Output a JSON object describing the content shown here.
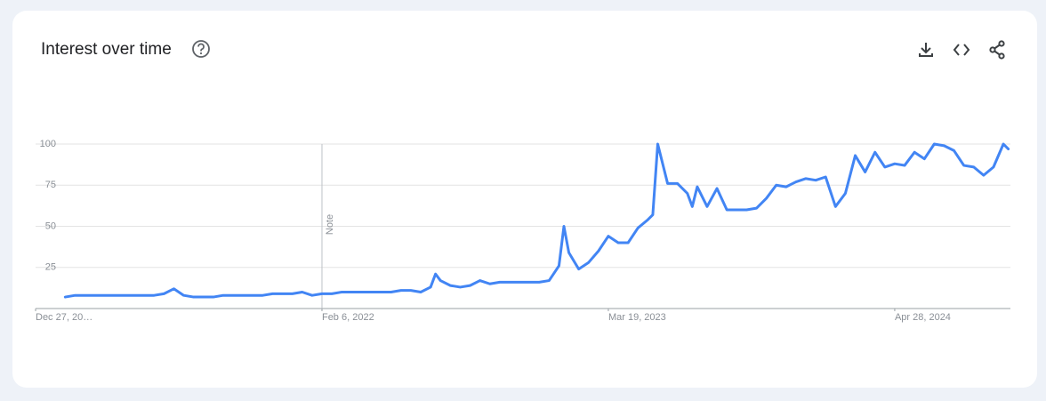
{
  "chart_data": {
    "type": "line",
    "title": "Interest over time",
    "x": [
      "2021-02-07",
      "2021-02-21",
      "2021-03-07",
      "2021-03-21",
      "2021-04-04",
      "2021-04-18",
      "2021-05-02",
      "2021-05-16",
      "2021-05-30",
      "2021-06-13",
      "2021-06-27",
      "2021-07-11",
      "2021-07-25",
      "2021-08-08",
      "2021-08-22",
      "2021-09-05",
      "2021-09-19",
      "2021-10-03",
      "2021-10-17",
      "2021-10-31",
      "2021-11-14",
      "2021-11-28",
      "2021-12-12",
      "2021-12-26",
      "2022-01-09",
      "2022-01-23",
      "2022-02-06",
      "2022-02-20",
      "2022-03-06",
      "2022-03-20",
      "2022-04-03",
      "2022-04-17",
      "2022-05-01",
      "2022-05-15",
      "2022-05-29",
      "2022-06-12",
      "2022-06-26",
      "2022-07-10",
      "2022-07-17",
      "2022-07-24",
      "2022-08-07",
      "2022-08-21",
      "2022-09-04",
      "2022-09-18",
      "2022-10-02",
      "2022-10-16",
      "2022-10-30",
      "2022-11-13",
      "2022-11-27",
      "2022-12-11",
      "2022-12-25",
      "2023-01-08",
      "2023-01-15",
      "2023-01-22",
      "2023-02-05",
      "2023-02-19",
      "2023-03-05",
      "2023-03-19",
      "2023-04-02",
      "2023-04-16",
      "2023-04-30",
      "2023-05-14",
      "2023-05-21",
      "2023-05-28",
      "2023-06-11",
      "2023-06-25",
      "2023-07-09",
      "2023-07-16",
      "2023-07-23",
      "2023-08-06",
      "2023-08-20",
      "2023-09-03",
      "2023-09-17",
      "2023-10-01",
      "2023-10-15",
      "2023-10-29",
      "2023-11-12",
      "2023-11-26",
      "2023-12-10",
      "2023-12-24",
      "2024-01-07",
      "2024-01-21",
      "2024-02-04",
      "2024-02-18",
      "2024-03-03",
      "2024-03-17",
      "2024-03-31",
      "2024-04-14",
      "2024-04-28",
      "2024-05-12",
      "2024-05-26",
      "2024-06-09",
      "2024-06-23",
      "2024-07-07",
      "2024-07-21",
      "2024-08-04",
      "2024-08-18",
      "2024-09-01",
      "2024-09-15",
      "2024-09-29",
      "2024-10-06"
    ],
    "values": [
      7,
      8,
      8,
      8,
      8,
      8,
      8,
      8,
      8,
      8,
      9,
      12,
      8,
      7,
      7,
      7,
      8,
      8,
      8,
      8,
      8,
      9,
      9,
      9,
      10,
      8,
      9,
      9,
      10,
      10,
      10,
      10,
      10,
      10,
      11,
      11,
      10,
      13,
      21,
      17,
      14,
      13,
      14,
      17,
      15,
      16,
      16,
      16,
      16,
      16,
      17,
      26,
      50,
      34,
      24,
      28,
      35,
      44,
      40,
      40,
      49,
      54,
      57,
      100,
      76,
      76,
      70,
      62,
      74,
      62,
      73,
      60,
      60,
      60,
      61,
      67,
      75,
      74,
      77,
      79,
      78,
      80,
      62,
      70,
      93,
      83,
      95,
      86,
      88,
      87,
      95,
      91,
      100,
      99,
      96,
      87,
      86,
      81,
      86,
      100,
      97
    ],
    "color": "#4285f4",
    "xlim": [
      "2020-12-27",
      "2024-10-09"
    ],
    "xticks": [
      {
        "value": "2020-12-27",
        "label": "Dec 27, 20…"
      },
      {
        "value": "2022-02-06",
        "label": "Feb 6, 2022"
      },
      {
        "value": "2023-03-19",
        "label": "Mar 19, 2023"
      },
      {
        "value": "2024-04-28",
        "label": "Apr 28, 2024"
      }
    ],
    "ylim": [
      0,
      100
    ],
    "yticks": [
      25,
      50,
      75,
      100
    ],
    "grid": true,
    "annotations": [
      {
        "x": "2022-02-06",
        "label": "Note"
      }
    ]
  }
}
